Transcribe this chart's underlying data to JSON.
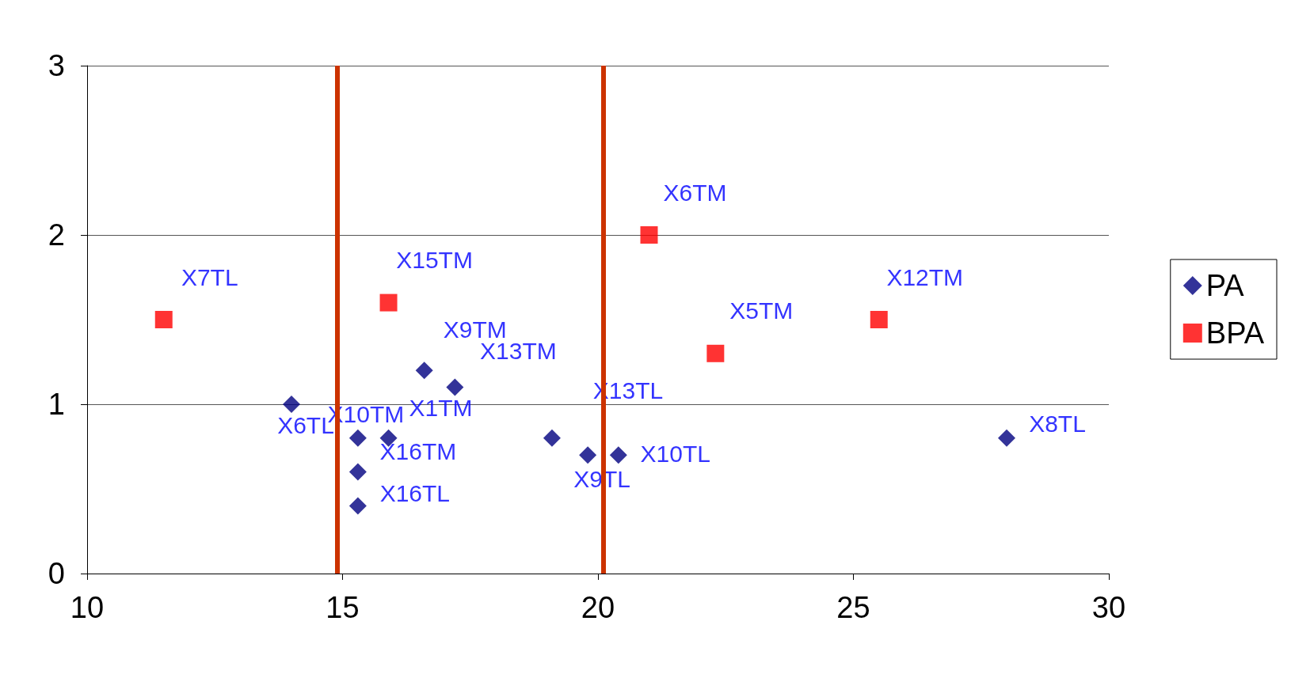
{
  "chart_data": {
    "type": "scatter",
    "xlim": [
      10,
      30
    ],
    "xticks": [
      10,
      15,
      20,
      25,
      30
    ],
    "ylim": [
      0,
      3
    ],
    "yticks": [
      0,
      1,
      2,
      3
    ],
    "grid": "y",
    "legend": "right",
    "series": [
      {
        "name": "PA",
        "color": "#000080",
        "marker": "diamond",
        "x": [
          14.0,
          15.3,
          15.3,
          15.3,
          15.9,
          16.6,
          17.2,
          19.1,
          19.8,
          20.4,
          28.0
        ],
        "values": [
          1.0,
          0.8,
          0.6,
          0.4,
          0.8,
          1.2,
          1.1,
          0.8,
          0.7,
          0.7,
          0.8
        ],
        "value_labels": [
          "X6TL",
          "X10TM",
          "X16TM",
          "X16TL",
          "X1TM",
          "X9TM",
          "X13TM",
          "X13TL",
          "X9TL",
          "X10TL",
          "X8TL"
        ]
      },
      {
        "name": "BPA",
        "color": "#ff0000",
        "marker": "square",
        "x": [
          11.5,
          15.9,
          21.0,
          22.3,
          25.5
        ],
        "values": [
          1.5,
          1.6,
          2.0,
          1.3,
          1.5
        ],
        "value_labels": [
          "X7TL",
          "X15TM",
          "X6TM",
          "X5TM",
          "X12TM"
        ]
      }
    ],
    "ref_lines": [
      {
        "axis": "x",
        "value": 14.9,
        "color": "#cc3300"
      },
      {
        "axis": "x",
        "value": 20.1,
        "color": "#cc3300"
      }
    ]
  }
}
